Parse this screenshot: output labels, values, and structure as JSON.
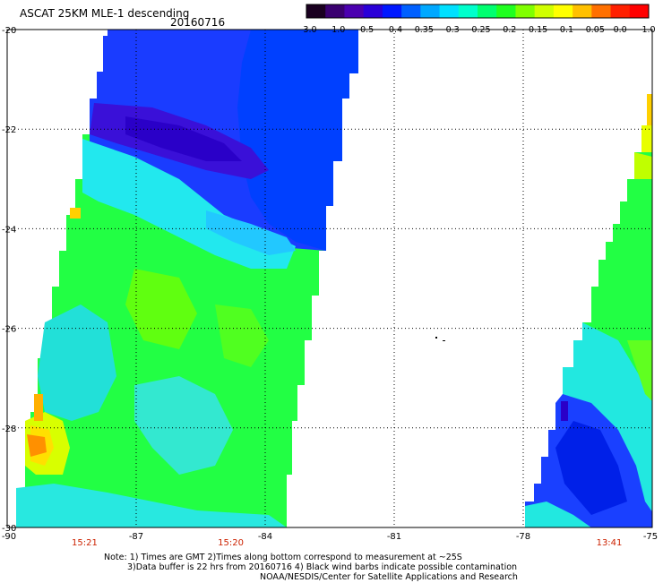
{
  "title": {
    "product": "ASCAT 25KM MLE-1 descending",
    "date": "20160716"
  },
  "colorbar": {
    "ticks": [
      "-3.0",
      "-1.0",
      "-0.5",
      "-0.4",
      "-0.35",
      "-0.3",
      "-0.25",
      "-0.2",
      "-0.15",
      "-0.1",
      "-0.05",
      "0.0",
      "1.0"
    ],
    "colors": [
      "#1a0020",
      "#3a0070",
      "#4b00b0",
      "#2a00d8",
      "#0018ff",
      "#0060ff",
      "#00a8ff",
      "#00e0ff",
      "#00ffcc",
      "#00ff70",
      "#20ff20",
      "#80ff00",
      "#d0ff00",
      "#ffff00",
      "#ffc000",
      "#ff7000",
      "#ff2000",
      "#ff0000"
    ]
  },
  "axes": {
    "lat_labels": [
      "-20",
      "-22",
      "-24",
      "-26",
      "-28",
      "-30"
    ],
    "lon_labels": [
      "-90",
      "-87",
      "-84",
      "-81",
      "-78",
      "-75"
    ],
    "lat_range": [
      -30,
      -20
    ],
    "lon_range": [
      -90,
      -75
    ]
  },
  "swath_times": [
    {
      "label": "15:21",
      "lon": -88.2
    },
    {
      "label": "15:20",
      "lon": -84.8
    },
    {
      "label": "13:41",
      "lon": -76.0
    }
  ],
  "notes": {
    "line1": "Note: 1) Times are GMT 2)Times along bottom correspond to measurement at ~25S",
    "line2": "3)Data buffer is 22 hrs from 20160716 4) Black wind barbs indicate possible contamination",
    "line3": "NOAA/NESDIS/Center for Satellite Applications and Research"
  },
  "colors": {
    "time_label": "#cc2200",
    "grid": "#000000"
  }
}
